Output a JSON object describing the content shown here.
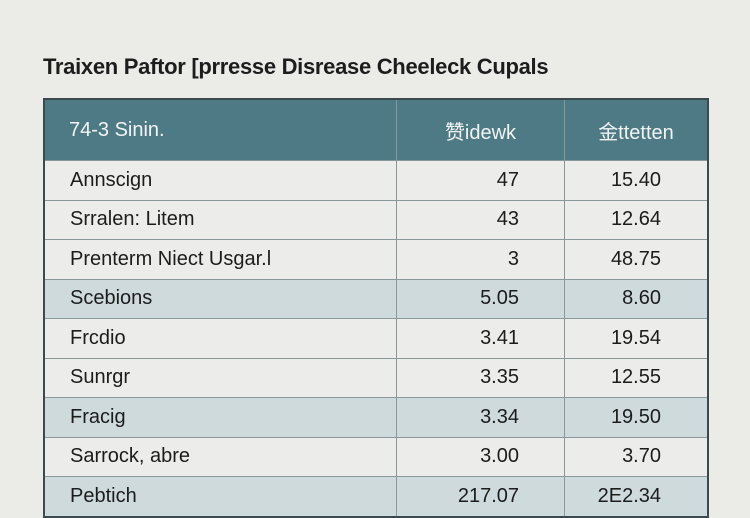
{
  "title": "Traixen Paftor [prresse Disrease Cheeleck Cupals",
  "table": {
    "header": [
      "74-3 Sinin.",
      "赞idewk",
      "金ttetten"
    ],
    "rows": [
      [
        "Annscign",
        "47",
        "15.40"
      ],
      [
        "Srralen: Litem",
        "43",
        "12.64"
      ],
      [
        "Prenterm Niect Usgar.l",
        "3",
        "48.75"
      ],
      [
        "Scebions",
        "5.05",
        "8.60"
      ],
      [
        "Frcdio",
        "3.41",
        "19.54"
      ],
      [
        "Sunrgr",
        "3.35",
        "12.55"
      ],
      [
        "Fracig",
        "3.34",
        "19.50"
      ],
      [
        "Sarrock, abre",
        "3.00",
        "3.70"
      ],
      [
        "Pebtich",
        "217.07",
        "2E2.34"
      ]
    ]
  }
}
